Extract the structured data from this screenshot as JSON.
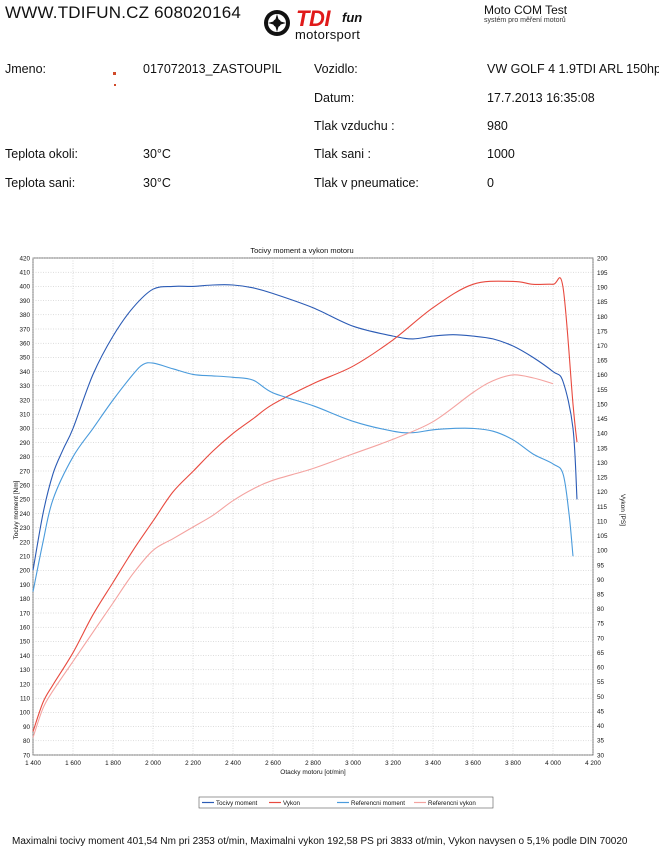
{
  "header": {
    "site": "WWW.TDIFUN.CZ 608020164",
    "logo_tdi": "TDI",
    "logo_fun": "fun",
    "logo_motorsport": "motorsport",
    "test_title": "Moto COM Test",
    "test_subtitle": "systém pro měření motorů"
  },
  "info": {
    "name_label": "Jmeno:",
    "name_value": "017072013_ZASTOUPIL",
    "ambient_label": "Teplota okoli:",
    "ambient_value": "30°C",
    "intake_label": "Teplota sani:",
    "intake_value": "30°C",
    "vehicle_label": "Vozidlo:",
    "vehicle_value": "VW GOLF 4 1.9TDI ARL 150hp",
    "date_label": "Datum:",
    "date_value": "17.7.2013 16:35:08",
    "air_pressure_label": "Tlak vzduchu :",
    "air_pressure_value": "980",
    "intake_pressure_label": "Tlak sani :",
    "intake_pressure_value": "1000",
    "tyre_pressure_label": "Tlak v pneumatice:",
    "tyre_pressure_value": "0"
  },
  "chart_data": {
    "type": "line",
    "title": "Tocivy moment a vykon motoru",
    "xlabel": "Otacky motoru [ot/min]",
    "ylabel": "Tocivy moment [Nm]",
    "y2label": "Vykon [PS]",
    "xlim": [
      1400,
      4200
    ],
    "ylim": [
      70,
      420
    ],
    "y2lim": [
      30,
      200
    ],
    "x_ticks": [
      1400,
      1600,
      1800,
      2000,
      2200,
      2400,
      2600,
      2800,
      3000,
      3200,
      3400,
      3600,
      3800,
      4000,
      4200
    ],
    "x_tick_labels": [
      "1 400",
      "1 600",
      "1 800",
      "2 000",
      "2 200",
      "2 400",
      "2 600",
      "2 800",
      "3 000",
      "3 200",
      "3 400",
      "3 600",
      "3 800",
      "4 000",
      "4 200"
    ],
    "y_ticks": [
      70,
      80,
      90,
      100,
      110,
      120,
      130,
      140,
      150,
      160,
      170,
      180,
      190,
      200,
      210,
      220,
      230,
      240,
      250,
      260,
      270,
      280,
      290,
      300,
      310,
      320,
      330,
      340,
      350,
      360,
      370,
      380,
      390,
      400,
      410,
      420
    ],
    "y2_ticks": [
      30,
      35,
      40,
      45,
      50,
      55,
      60,
      65,
      70,
      75,
      80,
      85,
      90,
      95,
      100,
      105,
      110,
      115,
      120,
      125,
      130,
      135,
      140,
      145,
      150,
      155,
      160,
      165,
      170,
      175,
      180,
      185,
      190,
      195,
      200
    ],
    "grid": true,
    "legend_position": "bottom",
    "series": [
      {
        "name": "Tocivy moment",
        "axis": "left",
        "color": "#2b5bb5",
        "x": [
          1400,
          1450,
          1500,
          1550,
          1600,
          1700,
          1800,
          1900,
          2000,
          2100,
          2200,
          2300,
          2400,
          2500,
          2600,
          2800,
          3000,
          3200,
          3300,
          3400,
          3500,
          3600,
          3700,
          3800,
          3900,
          4000,
          4050,
          4100,
          4120
        ],
        "y": [
          200,
          240,
          268,
          285,
          300,
          338,
          365,
          385,
          398,
          400,
          400,
          401,
          401,
          399,
          395,
          385,
          372,
          365,
          363,
          365,
          366,
          365,
          363,
          358,
          350,
          340,
          333,
          300,
          250
        ]
      },
      {
        "name": "Vykon",
        "axis": "right",
        "color": "#e84a3f",
        "x": [
          1400,
          1450,
          1500,
          1600,
          1700,
          1800,
          1900,
          2000,
          2100,
          2200,
          2300,
          2400,
          2500,
          2600,
          2800,
          3000,
          3200,
          3400,
          3600,
          3800,
          3900,
          4000,
          4050,
          4100,
          4120
        ],
        "y": [
          38,
          48,
          54,
          65,
          78,
          89,
          100,
          110,
          120,
          127,
          134,
          140,
          145,
          150,
          157,
          163,
          172,
          183,
          191,
          192,
          191,
          191,
          190,
          150,
          137
        ]
      },
      {
        "name": "Referencni moment",
        "axis": "left",
        "color": "#4a9bdc",
        "x": [
          1400,
          1450,
          1500,
          1600,
          1700,
          1800,
          1900,
          1950,
          2000,
          2100,
          2200,
          2300,
          2400,
          2500,
          2600,
          2800,
          3000,
          3200,
          3300,
          3400,
          3500,
          3600,
          3700,
          3800,
          3900,
          4000,
          4050,
          4080,
          4100
        ],
        "y": [
          185,
          220,
          250,
          280,
          300,
          320,
          338,
          345,
          346,
          342,
          338,
          337,
          336,
          334,
          325,
          316,
          305,
          298,
          297,
          299,
          300,
          300,
          298,
          292,
          282,
          275,
          268,
          240,
          210
        ]
      },
      {
        "name": "Referencni vykon",
        "axis": "right",
        "color": "#f4a3a0",
        "x": [
          1400,
          1450,
          1500,
          1600,
          1700,
          1800,
          1900,
          2000,
          2100,
          2200,
          2300,
          2400,
          2500,
          2600,
          2800,
          3000,
          3200,
          3400,
          3600,
          3700,
          3800,
          3900,
          4000
        ],
        "y": [
          36,
          46,
          52,
          62,
          72,
          82,
          92,
          100,
          104,
          108,
          112,
          117,
          121,
          124,
          128,
          133,
          138,
          144,
          154,
          158,
          160,
          159,
          157
        ]
      }
    ]
  },
  "footer": {
    "summary": "Maximalni tocivy moment 401,54 Nm pri 2353 ot/min,  Maximalni vykon 192,58 PS pri 3833 ot/min,  Vykon navysen o 5,1% podle DIN 70020"
  }
}
